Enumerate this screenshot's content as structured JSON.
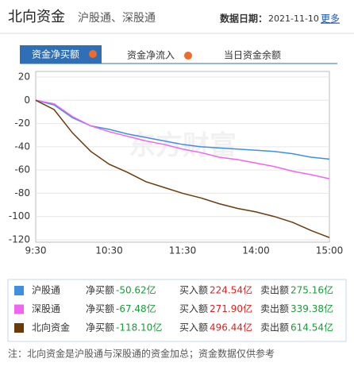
{
  "header": {
    "title": "北向资金",
    "subtitle": "沪股通、深股通",
    "date_label": "数据日期：",
    "date": "2021-11-10",
    "more": "更多",
    "watermark": "东方财富"
  },
  "tabs": [
    "资金净买额",
    "资金净流入",
    "当日资金余额"
  ],
  "chart_data": {
    "type": "line",
    "categories": [
      "9:30",
      null,
      null,
      null,
      "10:30",
      null,
      null,
      null,
      "11:30",
      null,
      null,
      null,
      "14:00",
      null,
      null,
      null,
      "15:00"
    ],
    "series": [
      {
        "name": "沪股通",
        "color": "#3f8fe0",
        "values": [
          0,
          -4,
          -15,
          -22,
          -25,
          -29,
          -32,
          -35,
          -38,
          -40,
          -41,
          -42,
          -43,
          -44,
          -46,
          -49,
          -50.62
        ]
      },
      {
        "name": "深股通",
        "color": "#ee66ee",
        "values": [
          0,
          -3,
          -14,
          -22,
          -27,
          -31,
          -35,
          -38,
          -42,
          -45,
          -49,
          -51,
          -54,
          -57,
          -61,
          -64,
          -67.48
        ]
      },
      {
        "name": "北向资金",
        "color": "#6b3a0a",
        "values": [
          0,
          -8,
          -28,
          -44,
          -55,
          -62,
          -70,
          -75,
          -80,
          -84,
          -89,
          -93,
          -96,
          -100,
          -105,
          -112,
          -118.1
        ]
      }
    ],
    "ylim": [
      -120,
      20
    ],
    "yticks": [
      20,
      0,
      -20,
      -40,
      -60,
      -80,
      -100,
      -120
    ],
    "grid": true
  },
  "summary": {
    "rows": [
      {
        "net_label": "净买额",
        "net": "-50.62亿",
        "buy_label": "买入额",
        "buy": "224.54亿",
        "sell_label": "卖出额",
        "sell": "275.16亿"
      },
      {
        "net_label": "净买额",
        "net": "-67.48亿",
        "buy_label": "买入额",
        "buy": "271.90亿",
        "sell_label": "卖出额",
        "sell": "339.38亿"
      },
      {
        "net_label": "净买额",
        "net": "-118.10亿",
        "buy_label": "买入额",
        "buy": "496.44亿",
        "sell_label": "卖出额",
        "sell": "614.54亿"
      }
    ]
  },
  "note": "注：北向资金是沪股通与深股通的资金加总；资金数据仅供参考"
}
